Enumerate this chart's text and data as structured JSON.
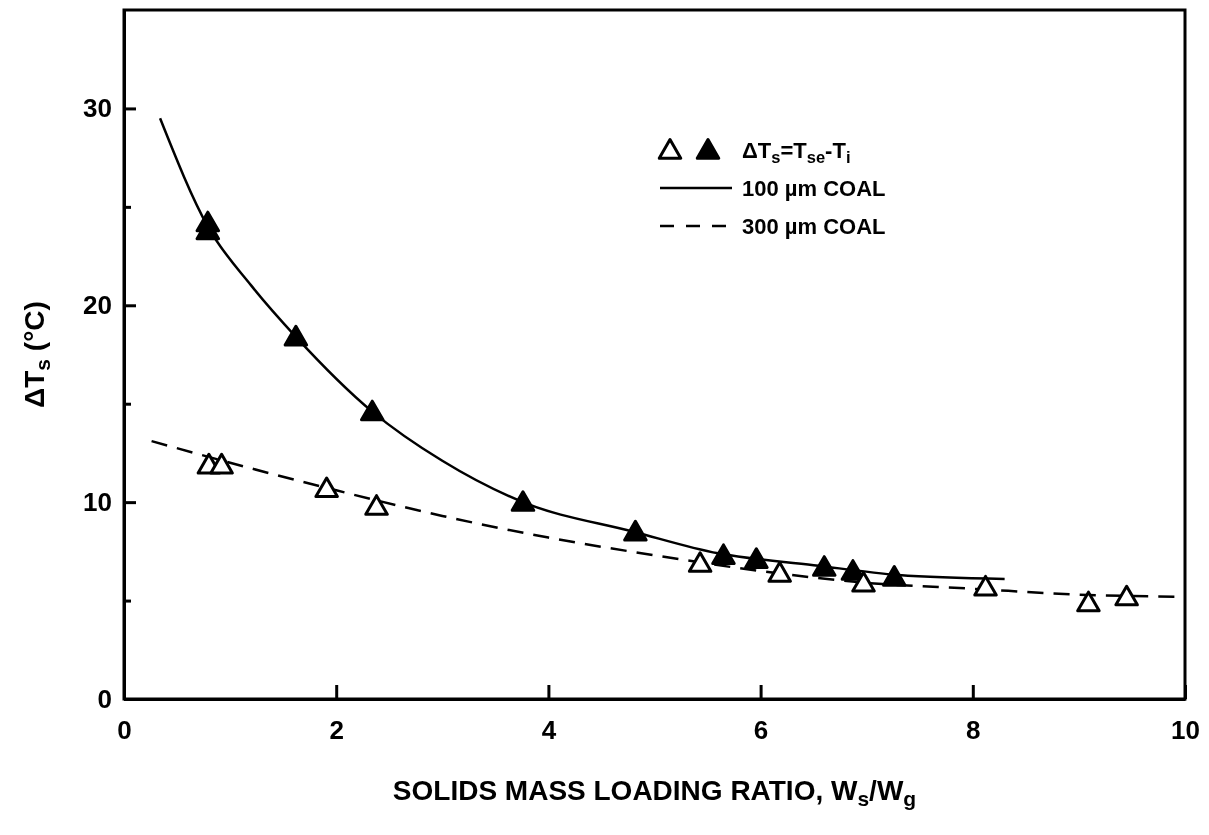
{
  "chart_data": {
    "type": "scatter",
    "xlabel": "SOLIDS MASS LOADING RATIO, W$_{s}$/W$_{g}$",
    "ylabel": "ΔT$_{s}$ (°C)",
    "xlim": [
      0,
      10
    ],
    "ylim": [
      0,
      35
    ],
    "xticks": [
      0,
      2,
      4,
      6,
      8,
      10
    ],
    "yticks": [
      0,
      {
        "value": 5,
        "label": null
      },
      10,
      {
        "value": 15,
        "label": null
      },
      20,
      {
        "value": 25,
        "label": null
      },
      30
    ],
    "grid": false,
    "legend": "top right",
    "marker": "triangle",
    "series": [
      {
        "name": "ΔT$_{s}$=T$_{se}$-T$_{i}$",
        "color": "#000000",
        "x": [
          0.79,
          0.79,
          1.62,
          2.34,
          3.76,
          4.82,
          5.65,
          5.96,
          6.6,
          6.87,
          7.26
        ],
        "values": [
          24.2,
          23.8,
          18.4,
          14.6,
          10,
          8.5,
          7.3,
          7.1,
          6.7,
          6.5,
          6.2
        ]
      },
      {
        "color": "#ffffff",
        "x": [
          0.8,
          0.92,
          1.91,
          2.38,
          5.43,
          6.18,
          6.97,
          8.12,
          9.09,
          9.45
        ],
        "values": [
          11.9,
          11.9,
          10.7,
          9.8,
          6.9,
          6.4,
          5.9,
          5.7,
          4.9,
          5.2
        ]
      },
      {
        "name": "100 µm COAL",
        "type": "line",
        "marker": "none",
        "line_style": "solid",
        "color": "#000000",
        "x": [
          0.34,
          0.79,
          1.2,
          1.62,
          2.34,
          3,
          3.76,
          4.8,
          5.6,
          6.5,
          7.3,
          8.3
        ],
        "values": [
          29.5,
          24,
          21,
          18.4,
          14.6,
          12.1,
          10,
          8.5,
          7.4,
          6.8,
          6.3,
          6.1
        ]
      },
      {
        "name": "300 µm COAL",
        "type": "line",
        "marker": "none",
        "line_style": "dashed",
        "color": "#000000",
        "x": [
          0.26,
          1,
          2,
          3,
          4,
          5,
          6,
          7,
          8,
          9,
          9.9
        ],
        "values": [
          13.1,
          12,
          10.6,
          9.3,
          8.2,
          7.3,
          6.5,
          5.9,
          5.6,
          5.3,
          5.2
        ]
      }
    ]
  }
}
